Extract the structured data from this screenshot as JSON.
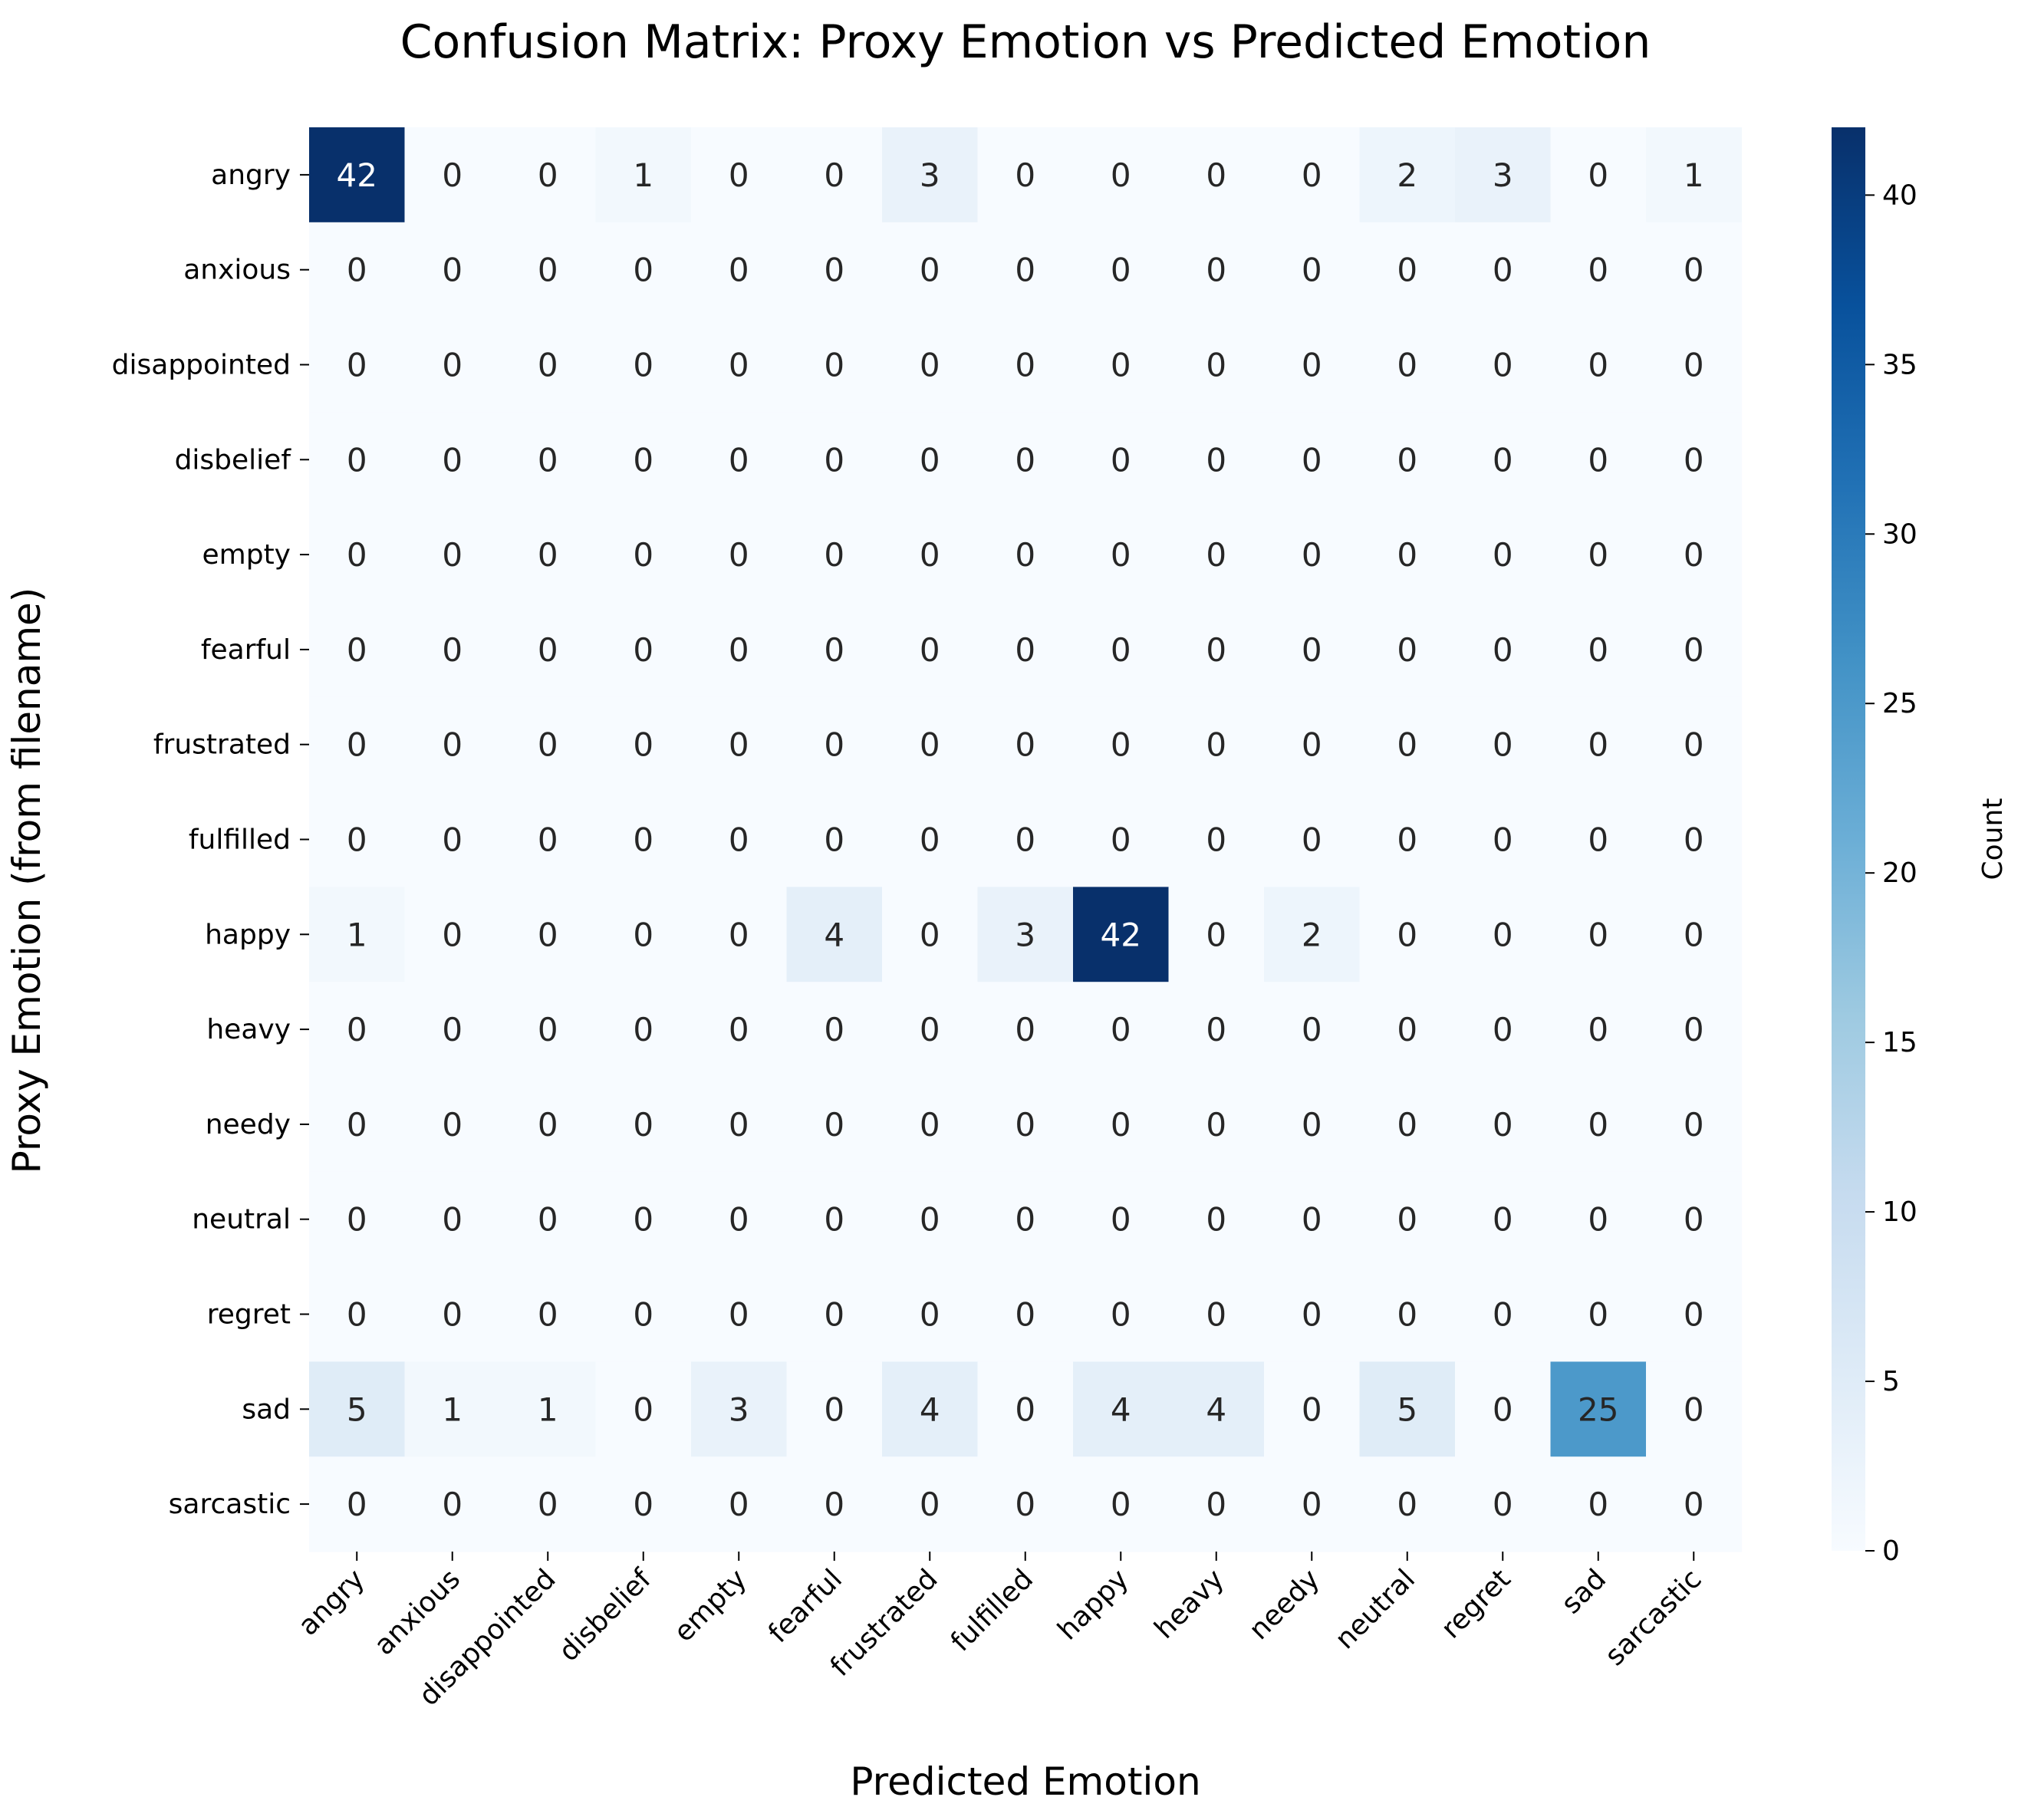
{
  "chart_data": {
    "type": "heatmap",
    "title": "Confusion Matrix: Proxy Emotion vs Predicted Emotion",
    "xlabel": "Predicted Emotion",
    "ylabel": "Proxy Emotion (from filename)",
    "x_categories": [
      "angry",
      "anxious",
      "disappointed",
      "disbelief",
      "empty",
      "fearful",
      "frustrated",
      "fulfilled",
      "happy",
      "heavy",
      "needy",
      "neutral",
      "regret",
      "sad",
      "sarcastic"
    ],
    "y_categories": [
      "angry",
      "anxious",
      "disappointed",
      "disbelief",
      "empty",
      "fearful",
      "frustrated",
      "fulfilled",
      "happy",
      "heavy",
      "needy",
      "neutral",
      "regret",
      "sad",
      "sarcastic"
    ],
    "values": [
      [
        42,
        0,
        0,
        1,
        0,
        0,
        3,
        0,
        0,
        0,
        0,
        2,
        3,
        0,
        1
      ],
      [
        0,
        0,
        0,
        0,
        0,
        0,
        0,
        0,
        0,
        0,
        0,
        0,
        0,
        0,
        0
      ],
      [
        0,
        0,
        0,
        0,
        0,
        0,
        0,
        0,
        0,
        0,
        0,
        0,
        0,
        0,
        0
      ],
      [
        0,
        0,
        0,
        0,
        0,
        0,
        0,
        0,
        0,
        0,
        0,
        0,
        0,
        0,
        0
      ],
      [
        0,
        0,
        0,
        0,
        0,
        0,
        0,
        0,
        0,
        0,
        0,
        0,
        0,
        0,
        0
      ],
      [
        0,
        0,
        0,
        0,
        0,
        0,
        0,
        0,
        0,
        0,
        0,
        0,
        0,
        0,
        0
      ],
      [
        0,
        0,
        0,
        0,
        0,
        0,
        0,
        0,
        0,
        0,
        0,
        0,
        0,
        0,
        0
      ],
      [
        0,
        0,
        0,
        0,
        0,
        0,
        0,
        0,
        0,
        0,
        0,
        0,
        0,
        0,
        0
      ],
      [
        1,
        0,
        0,
        0,
        0,
        4,
        0,
        3,
        42,
        0,
        2,
        0,
        0,
        0,
        0
      ],
      [
        0,
        0,
        0,
        0,
        0,
        0,
        0,
        0,
        0,
        0,
        0,
        0,
        0,
        0,
        0
      ],
      [
        0,
        0,
        0,
        0,
        0,
        0,
        0,
        0,
        0,
        0,
        0,
        0,
        0,
        0,
        0
      ],
      [
        0,
        0,
        0,
        0,
        0,
        0,
        0,
        0,
        0,
        0,
        0,
        0,
        0,
        0,
        0
      ],
      [
        0,
        0,
        0,
        0,
        0,
        0,
        0,
        0,
        0,
        0,
        0,
        0,
        0,
        0,
        0
      ],
      [
        5,
        1,
        1,
        0,
        3,
        0,
        4,
        0,
        4,
        4,
        0,
        5,
        0,
        25,
        0
      ],
      [
        0,
        0,
        0,
        0,
        0,
        0,
        0,
        0,
        0,
        0,
        0,
        0,
        0,
        0,
        0
      ]
    ],
    "colorbar": {
      "label": "Count",
      "range": [
        0,
        42
      ],
      "ticks": [
        0,
        5,
        10,
        15,
        20,
        25,
        30,
        35,
        40
      ],
      "colormap": [
        "#f7fbff",
        "#deebf7",
        "#c6dbef",
        "#9ecae1",
        "#6baed6",
        "#4292c6",
        "#2171b5",
        "#08519c",
        "#08306b"
      ]
    },
    "annotations": "cell counts",
    "grid": false
  }
}
